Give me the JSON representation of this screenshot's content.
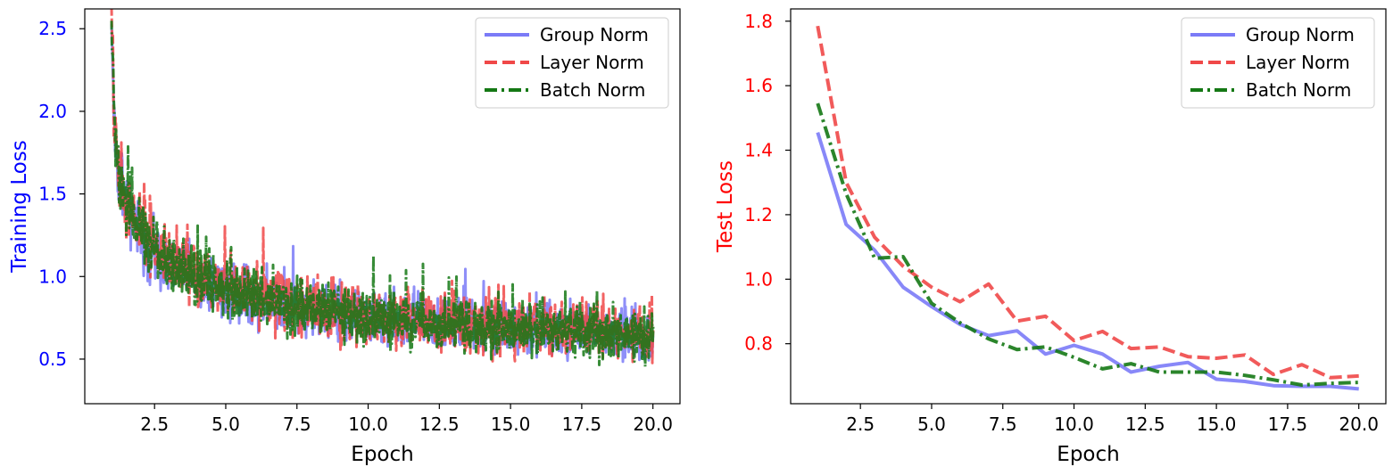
{
  "chart_data": [
    {
      "type": "line",
      "xlabel": "Epoch",
      "ylabel": "Training Loss",
      "ylabel_color": "#0000ff",
      "ytick_color": "#0000ff",
      "xlim": [
        0.05,
        20.95
      ],
      "ylim": [
        0.23,
        2.62
      ],
      "xticks": [
        2.5,
        5.0,
        7.5,
        10.0,
        12.5,
        15.0,
        17.5,
        20.0
      ],
      "xtick_labels": [
        "2.5",
        "5.0",
        "7.5",
        "10.0",
        "12.5",
        "15.0",
        "17.5",
        "20.0"
      ],
      "yticks": [
        0.5,
        1.0,
        1.5,
        2.0,
        2.5
      ],
      "ytick_labels": [
        "0.5",
        "1.0",
        "1.5",
        "2.0",
        "2.5"
      ],
      "legend_position": "top-right",
      "noisy": true,
      "series": [
        {
          "name": "Group Norm",
          "color": "#7b7bf7",
          "style": "solid",
          "x": [
            1.0,
            1.1,
            1.25,
            1.5,
            2.0,
            2.5,
            3.0,
            4.0,
            5.0,
            6.0,
            7.0,
            8.0,
            9.0,
            10.0,
            12.0,
            14.0,
            16.0,
            18.0,
            20.0
          ],
          "values": [
            2.5,
            1.85,
            1.6,
            1.42,
            1.25,
            1.15,
            1.07,
            0.98,
            0.92,
            0.87,
            0.83,
            0.8,
            0.77,
            0.75,
            0.71,
            0.69,
            0.67,
            0.65,
            0.63
          ],
          "noise_amplitude": 0.13
        },
        {
          "name": "Layer Norm",
          "color": "#f04848",
          "style": "dashed",
          "x": [
            1.0,
            1.1,
            1.25,
            1.5,
            2.0,
            2.5,
            3.0,
            4.0,
            5.0,
            6.0,
            7.0,
            8.0,
            9.0,
            10.0,
            12.0,
            14.0,
            16.0,
            18.0,
            20.0
          ],
          "values": [
            2.5,
            1.88,
            1.62,
            1.45,
            1.27,
            1.17,
            1.09,
            1.0,
            0.94,
            0.89,
            0.85,
            0.81,
            0.78,
            0.76,
            0.72,
            0.7,
            0.68,
            0.66,
            0.64
          ],
          "noise_amplitude": 0.14
        },
        {
          "name": "Batch Norm",
          "color": "#147814",
          "style": "dashdot",
          "x": [
            1.0,
            1.1,
            1.25,
            1.5,
            2.0,
            2.5,
            3.0,
            4.0,
            5.0,
            6.0,
            7.0,
            8.0,
            9.0,
            10.0,
            12.0,
            14.0,
            16.0,
            18.0,
            20.0
          ],
          "values": [
            2.5,
            1.86,
            1.61,
            1.43,
            1.26,
            1.16,
            1.08,
            0.99,
            0.93,
            0.88,
            0.84,
            0.8,
            0.77,
            0.75,
            0.71,
            0.69,
            0.67,
            0.65,
            0.63
          ],
          "noise_amplitude": 0.13
        }
      ]
    },
    {
      "type": "line",
      "xlabel": "Epoch",
      "ylabel": "Test Loss",
      "ylabel_color": "#ff0000",
      "ytick_color": "#ff0000",
      "xlim": [
        0.05,
        20.95
      ],
      "ylim": [
        0.614,
        1.838
      ],
      "xticks": [
        2.5,
        5.0,
        7.5,
        10.0,
        12.5,
        15.0,
        17.5,
        20.0
      ],
      "xtick_labels": [
        "2.5",
        "5.0",
        "7.5",
        "10.0",
        "12.5",
        "15.0",
        "17.5",
        "20.0"
      ],
      "yticks": [
        0.8,
        1.0,
        1.2,
        1.4,
        1.6,
        1.8
      ],
      "ytick_labels": [
        "0.8",
        "1.0",
        "1.2",
        "1.4",
        "1.6",
        "1.8"
      ],
      "legend_position": "top-right",
      "noisy": false,
      "series": [
        {
          "name": "Group Norm",
          "color": "#7b7bf7",
          "style": "solid",
          "x": [
            1,
            2,
            3,
            4,
            5,
            6,
            7,
            8,
            9,
            10,
            11,
            12,
            13,
            14,
            15,
            16,
            17,
            18,
            19,
            20
          ],
          "values": [
            1.455,
            1.17,
            1.09,
            0.975,
            0.915,
            0.86,
            0.825,
            0.84,
            0.768,
            0.795,
            0.768,
            0.712,
            0.73,
            0.742,
            0.69,
            0.683,
            0.67,
            0.668,
            0.668,
            0.66
          ]
        },
        {
          "name": "Layer Norm",
          "color": "#f04848",
          "style": "dashed",
          "x": [
            1,
            2,
            3,
            4,
            5,
            6,
            7,
            8,
            9,
            10,
            11,
            12,
            13,
            14,
            15,
            16,
            17,
            18,
            19,
            20
          ],
          "values": [
            1.785,
            1.3,
            1.13,
            1.04,
            0.975,
            0.93,
            0.985,
            0.87,
            0.885,
            0.81,
            0.838,
            0.785,
            0.79,
            0.76,
            0.755,
            0.765,
            0.705,
            0.735,
            0.695,
            0.7
          ]
        },
        {
          "name": "Batch Norm",
          "color": "#147814",
          "style": "dashdot",
          "x": [
            1,
            2,
            3,
            4,
            5,
            6,
            7,
            8,
            9,
            10,
            11,
            12,
            13,
            14,
            15,
            16,
            17,
            18,
            19,
            20
          ],
          "values": [
            1.545,
            1.265,
            1.065,
            1.07,
            0.925,
            0.865,
            0.815,
            0.782,
            0.79,
            0.758,
            0.722,
            0.738,
            0.712,
            0.712,
            0.712,
            0.702,
            0.688,
            0.672,
            0.677,
            0.68
          ]
        }
      ]
    }
  ]
}
